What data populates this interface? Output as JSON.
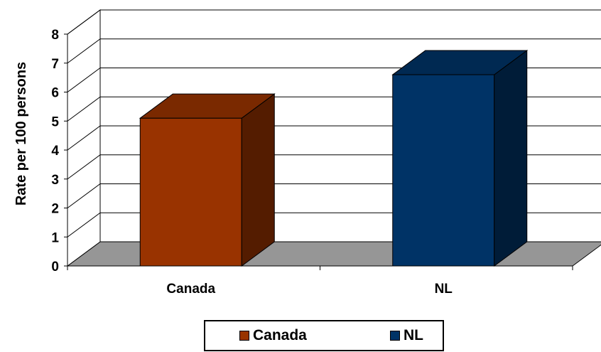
{
  "chart_data": {
    "type": "bar",
    "title": "",
    "xlabel": "",
    "ylabel": "Rate per 100 persons",
    "categories": [
      "Canada",
      "NL"
    ],
    "series": [
      {
        "name": "Canada",
        "values": [
          5.1,
          null
        ],
        "color": "#993300"
      },
      {
        "name": "NL",
        "values": [
          null,
          6.6
        ],
        "color": "#003366"
      }
    ],
    "ylim": [
      0,
      8
    ],
    "yticks": [
      0,
      1,
      2,
      3,
      4,
      5,
      6,
      7,
      8
    ],
    "grid": true,
    "style": "3d-column",
    "floor_color": "#969696",
    "legend_position": "bottom"
  },
  "legend": {
    "items": [
      {
        "label": "Canada",
        "color": "#993300"
      },
      {
        "label": "NL",
        "color": "#003366"
      }
    ]
  }
}
